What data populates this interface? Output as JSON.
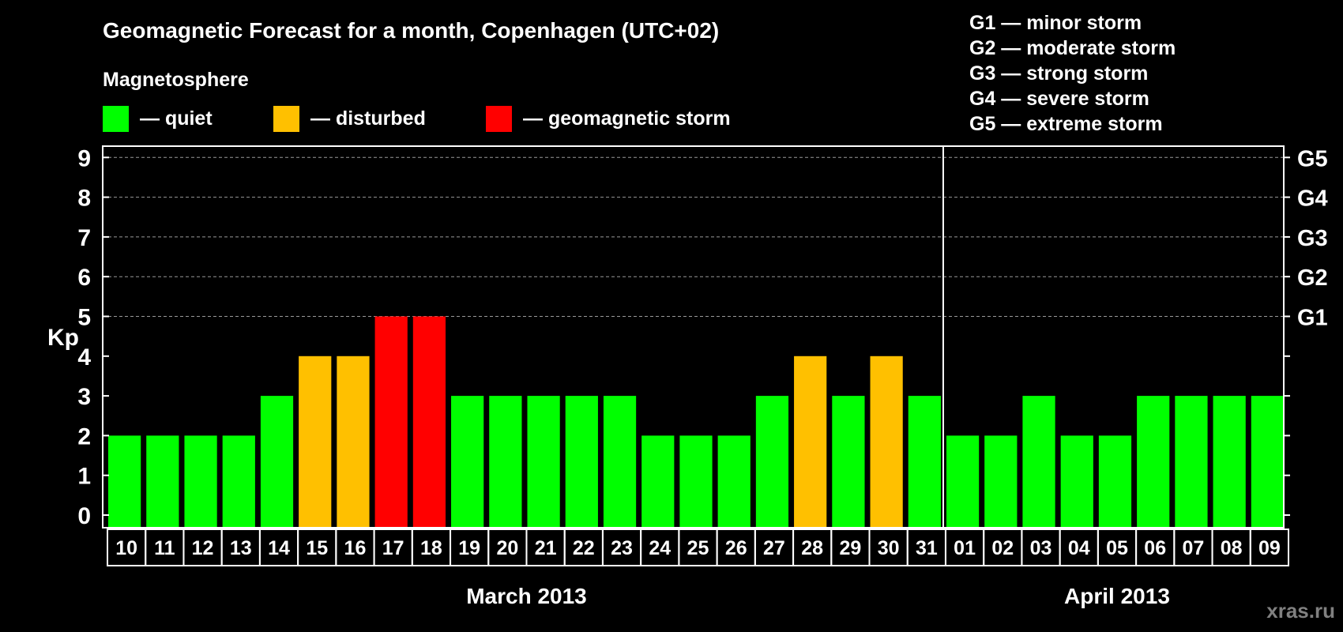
{
  "chart_data": {
    "type": "bar",
    "title": "Geomagnetic Forecast for a month, Copenhagen (UTC+02)",
    "ylabel": "Kp",
    "ylim": [
      0,
      9
    ],
    "yticks": [
      "0",
      "1",
      "2",
      "3",
      "4",
      "5",
      "6",
      "7",
      "8",
      "9"
    ],
    "right_axis": [
      {
        "kp": 5,
        "label": "G1"
      },
      {
        "kp": 6,
        "label": "G2"
      },
      {
        "kp": 7,
        "label": "G3"
      },
      {
        "kp": 8,
        "label": "G4"
      },
      {
        "kp": 9,
        "label": "G5"
      }
    ],
    "categories": [
      "10",
      "11",
      "12",
      "13",
      "14",
      "15",
      "16",
      "17",
      "18",
      "19",
      "20",
      "21",
      "22",
      "23",
      "24",
      "25",
      "26",
      "27",
      "28",
      "29",
      "30",
      "31",
      "01",
      "02",
      "03",
      "04",
      "05",
      "06",
      "07",
      "08",
      "09"
    ],
    "values": [
      2,
      2,
      2,
      2,
      3,
      4,
      4,
      5,
      5,
      3,
      3,
      3,
      3,
      3,
      2,
      2,
      2,
      3,
      4,
      3,
      4,
      3,
      2,
      2,
      3,
      2,
      2,
      3,
      3,
      3,
      3
    ],
    "months": [
      {
        "label": "March 2013",
        "first_index": 0,
        "last_index": 21
      },
      {
        "label": "April 2013",
        "first_index": 22,
        "last_index": 30
      }
    ],
    "legend_title": "Magnetosphere",
    "legend": [
      {
        "label": "— quiet",
        "color": "#00ff00"
      },
      {
        "label": "— disturbed",
        "color": "#ffc000"
      },
      {
        "label": "— geomagnetic storm",
        "color": "#ff0000"
      }
    ],
    "storm_scale": [
      "G1 — minor storm",
      "G2 — moderate storm",
      "G3 — strong storm",
      "G4 — severe storm",
      "G5 — extreme storm"
    ],
    "colors": {
      "quiet": "#00ff00",
      "disturbed": "#ffc000",
      "storm": "#ff0000"
    }
  },
  "watermark": "xras.ru"
}
